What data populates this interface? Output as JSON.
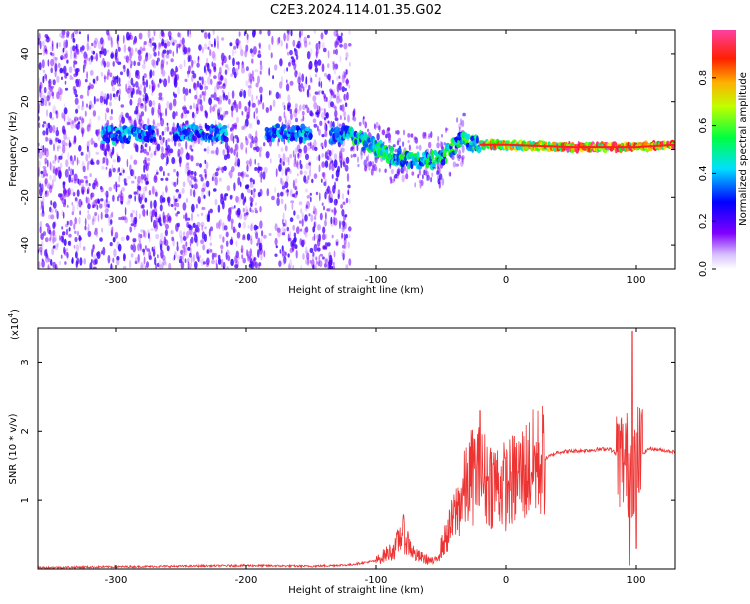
{
  "title": "C2E3.2024.114.01.35.G02",
  "colors": {
    "snr_line": "#ee3333",
    "spectro_low": "#c8b0f0",
    "spectro_mid": "#6a1fd0",
    "axis": "#000000",
    "background": "#ffffff"
  },
  "chart_data": [
    {
      "type": "heatmap",
      "panel": "spectrogram",
      "xlabel": "Height of straight line (km)",
      "ylabel": "Frequency (Hz)",
      "xlim": [
        -360,
        130
      ],
      "ylim": [
        -50,
        50
      ],
      "xticks": [
        -300,
        -200,
        -100,
        0,
        100
      ],
      "yticks": [
        -40,
        -20,
        0,
        20,
        40
      ],
      "colorbar": {
        "label": "Normalized spectral amplitude",
        "range": [
          0,
          1
        ],
        "ticks": [
          "0.0",
          "0.2",
          "0.4",
          "0.6",
          "0.8"
        ],
        "colormap": [
          "#ffffff",
          "#8000ff",
          "#0000ff",
          "#00e0ff",
          "#00ff00",
          "#ffff00",
          "#ff8000",
          "#ff0000",
          "#ff33aa"
        ]
      },
      "main_tone_track": [
        {
          "x": -300,
          "y": 6
        },
        {
          "x": -250,
          "y": 7
        },
        {
          "x": -180,
          "y": 7
        },
        {
          "x": -120,
          "y": 6
        },
        {
          "x": -90,
          "y": -2
        },
        {
          "x": -70,
          "y": -5
        },
        {
          "x": -50,
          "y": -4
        },
        {
          "x": -35,
          "y": 4
        },
        {
          "x": -20,
          "y": 2
        },
        {
          "x": 0,
          "y": 2
        },
        {
          "x": 50,
          "y": 1
        },
        {
          "x": 100,
          "y": 1
        },
        {
          "x": 130,
          "y": 2
        }
      ]
    },
    {
      "type": "line",
      "panel": "snr",
      "xlabel": "Height of straight line (km)",
      "ylabel": "SNR (10 * v/v)",
      "y_multiplier": "(x10",
      "y_multiplier_exp": "4",
      "y_multiplier_close": ")",
      "xlim": [
        -360,
        130
      ],
      "ylim": [
        0,
        3.5
      ],
      "xticks": [
        -300,
        -200,
        -100,
        0,
        100
      ],
      "yticks": [
        1,
        2,
        3
      ],
      "series": [
        {
          "values_envelope": [
            {
              "x": -360,
              "y": 0.02
            },
            {
              "x": -250,
              "y": 0.04
            },
            {
              "x": -200,
              "y": 0.05
            },
            {
              "x": -150,
              "y": 0.04
            },
            {
              "x": -120,
              "y": 0.06
            },
            {
              "x": -100,
              "y": 0.12
            },
            {
              "x": -85,
              "y": 0.3
            },
            {
              "x": -80,
              "y": 0.55
            },
            {
              "x": -70,
              "y": 0.2
            },
            {
              "x": -55,
              "y": 0.1
            },
            {
              "x": -45,
              "y": 0.5
            },
            {
              "x": -35,
              "y": 1.0
            },
            {
              "x": -25,
              "y": 1.4
            },
            {
              "x": -15,
              "y": 1.3
            },
            {
              "x": 0,
              "y": 1.2
            },
            {
              "x": 20,
              "y": 1.5
            },
            {
              "x": 40,
              "y": 1.7
            },
            {
              "x": 60,
              "y": 1.72
            },
            {
              "x": 80,
              "y": 1.75
            },
            {
              "x": 95,
              "y": 1.5
            },
            {
              "x": 100,
              "y": 1.6
            },
            {
              "x": 110,
              "y": 1.75
            },
            {
              "x": 130,
              "y": 1.7
            }
          ],
          "spikes": [
            {
              "x": -20,
              "y": 2.3
            },
            {
              "x": 97,
              "y": 3.45
            },
            {
              "x": 95,
              "y": 0.05
            },
            {
              "x": 100,
              "y": 0.3
            }
          ]
        }
      ]
    }
  ]
}
